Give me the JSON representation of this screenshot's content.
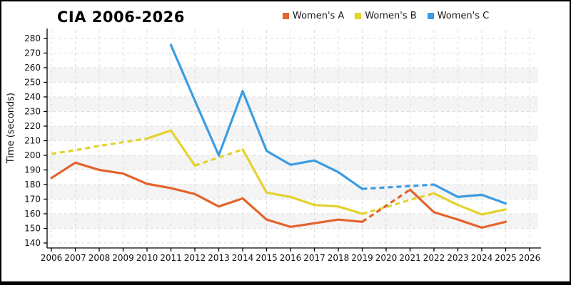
{
  "chart_data": {
    "type": "line",
    "title": "CIA 2006-2026",
    "xlabel": "",
    "ylabel": "Time (seconds)",
    "ylim": [
      140,
      280
    ],
    "ytick_step": 10,
    "y_ticks": [
      140,
      150,
      160,
      170,
      180,
      190,
      200,
      210,
      220,
      230,
      240,
      250,
      260,
      270,
      280
    ],
    "x_ticks": [
      2006,
      2007,
      2008,
      2009,
      2010,
      2011,
      2012,
      2013,
      2014,
      2015,
      2016,
      2017,
      2018,
      2019,
      2020,
      2021,
      2022,
      2023,
      2024,
      2025,
      2026
    ],
    "grid": "dashed gridlines on both axes",
    "plot_band_color": "#f4f4f4",
    "gridline_color": "#dcdcdc",
    "axis_color": "#000000",
    "legend_position": "top-center",
    "series": [
      {
        "name": "Women's A",
        "color": "#e4632c",
        "z": 1,
        "segments": [
          {
            "style": "solid",
            "points": [
              [
                2006,
                184.5
              ],
              [
                2007,
                195
              ],
              [
                2008,
                190
              ],
              [
                2009,
                187.5
              ],
              [
                2010,
                180.5
              ],
              [
                2011,
                177.5
              ],
              [
                2012,
                173.5
              ],
              [
                2013,
                165
              ],
              [
                2014,
                170.5
              ],
              [
                2015,
                156
              ],
              [
                2016,
                151
              ],
              [
                2017,
                153.5
              ],
              [
                2018,
                156
              ],
              [
                2019,
                154.5
              ]
            ]
          },
          {
            "style": "dashed",
            "points": [
              [
                2019,
                154.5
              ],
              [
                2020,
                165.5
              ],
              [
                2021,
                176.5
              ]
            ]
          },
          {
            "style": "solid",
            "points": [
              [
                2021,
                176.5
              ],
              [
                2022,
                161
              ],
              [
                2023,
                156
              ],
              [
                2024,
                150.5
              ],
              [
                2025,
                154.5
              ]
            ]
          }
        ]
      },
      {
        "name": "Women's B",
        "color": "#e4d22d",
        "z": 0,
        "segments": [
          {
            "style": "dashed",
            "points": [
              [
                2006,
                201
              ],
              [
                2007,
                203.5
              ],
              [
                2008,
                206.5
              ],
              [
                2009,
                209
              ],
              [
                2010,
                211.5
              ]
            ]
          },
          {
            "style": "solid",
            "points": [
              [
                2010,
                211.5
              ],
              [
                2011,
                217
              ],
              [
                2012,
                193
              ]
            ]
          },
          {
            "style": "dashed",
            "points": [
              [
                2012,
                193
              ],
              [
                2013,
                198.5
              ],
              [
                2014,
                204
              ]
            ]
          },
          {
            "style": "solid",
            "points": [
              [
                2014,
                204
              ],
              [
                2015,
                174.5
              ],
              [
                2016,
                171.5
              ],
              [
                2017,
                166
              ],
              [
                2018,
                165
              ],
              [
                2019,
                160
              ]
            ]
          },
          {
            "style": "dashed",
            "points": [
              [
                2019,
                160
              ],
              [
                2020,
                164.5
              ],
              [
                2021,
                169.5
              ],
              [
                2022,
                174
              ]
            ]
          },
          {
            "style": "solid",
            "points": [
              [
                2022,
                174
              ],
              [
                2023,
                166
              ],
              [
                2024,
                159.5
              ],
              [
                2025,
                163
              ]
            ]
          }
        ]
      },
      {
        "name": "Women's C",
        "color": "#3a9ce1",
        "z": 2,
        "segments": [
          {
            "style": "solid",
            "points": [
              [
                2011,
                275.5
              ],
              [
                2012,
                237.5
              ],
              [
                2013,
                200
              ],
              [
                2014,
                244
              ],
              [
                2015,
                203
              ],
              [
                2016,
                193.5
              ],
              [
                2017,
                196.5
              ],
              [
                2018,
                188.5
              ],
              [
                2019,
                177
              ]
            ]
          },
          {
            "style": "dashed",
            "points": [
              [
                2019,
                177
              ],
              [
                2020,
                178
              ],
              [
                2021,
                179
              ],
              [
                2022,
                180
              ]
            ]
          },
          {
            "style": "solid",
            "points": [
              [
                2022,
                180
              ],
              [
                2023,
                171.5
              ],
              [
                2024,
                173
              ],
              [
                2025,
                167
              ]
            ]
          }
        ]
      }
    ]
  }
}
